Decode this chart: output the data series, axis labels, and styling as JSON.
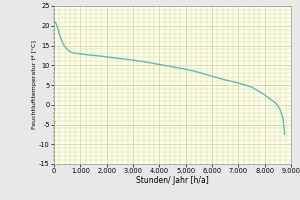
{
  "title": "",
  "xlabel": "Stunden/ Jahr [h/a]",
  "ylabel": "Feuchtlufttemperatur tᵠ [°C]",
  "xlim": [
    0,
    9000
  ],
  "ylim": [
    -15,
    25
  ],
  "xticks": [
    0,
    1000,
    2000,
    3000,
    4000,
    5000,
    6000,
    7000,
    8000,
    9000
  ],
  "yticks": [
    -15,
    -10,
    -5,
    0,
    5,
    10,
    15,
    20,
    25
  ],
  "line_color": "#5bbcb8",
  "bg_color": "#fefee8",
  "outer_bg": "#e8e8e8",
  "grid_color": "#d0d0a0",
  "curve_x": [
    0,
    30,
    60,
    100,
    150,
    200,
    300,
    400,
    500,
    600,
    700,
    850,
    1000,
    1200,
    1500,
    1800,
    2000,
    2500,
    3000,
    3500,
    4000,
    4500,
    5000,
    5500,
    6000,
    6500,
    7000,
    7500,
    8000,
    8200,
    8400,
    8500,
    8600,
    8700,
    8760
  ],
  "curve_y": [
    20.8,
    21.0,
    20.8,
    20.2,
    19.2,
    18.0,
    16.0,
    14.8,
    14.0,
    13.5,
    13.2,
    13.0,
    12.9,
    12.7,
    12.5,
    12.3,
    12.1,
    11.7,
    11.3,
    10.8,
    10.2,
    9.6,
    9.0,
    8.2,
    7.2,
    6.3,
    5.5,
    4.5,
    2.5,
    1.5,
    0.5,
    -0.2,
    -1.5,
    -3.5,
    -7.5
  ],
  "ylabel_fontsize": 4.5,
  "xlabel_fontsize": 5.5,
  "tick_labelsize": 4.8,
  "linewidth": 1.0
}
